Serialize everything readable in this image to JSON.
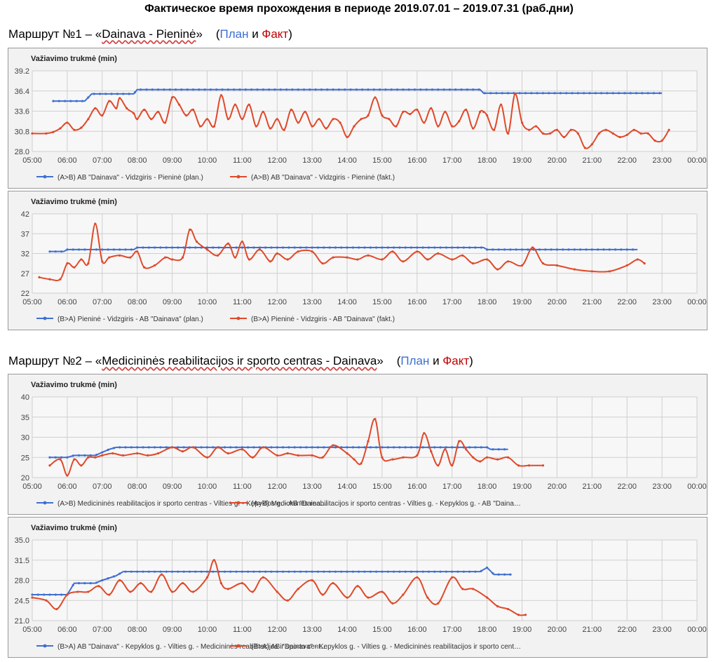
{
  "page_title": "Фактическое время прохождения в периоде 2019.07.01 – 2019.07.31 (раб.дни)",
  "headings": [
    {
      "prefix": "Маршрут №1 – «",
      "route": "Dainava - Pieninė",
      "suffix": "»",
      "open": "(",
      "plan": "План",
      "and": " и ",
      "fakt": "Факт",
      "close": ")"
    },
    {
      "prefix": "Маршрут №2 – «",
      "route": "Medicininės reabilitacijos ir sporto centras - Dainava",
      "suffix": "»",
      "open": "(",
      "plan": "План",
      "and": " и ",
      "fakt": "Факт",
      "close": ")"
    }
  ],
  "colors": {
    "plan": "#3f6fd1",
    "fact": "#e0492a",
    "grid": "#cfcfcf",
    "panel": "#f2f2f2"
  },
  "chart_data": [
    {
      "type": "line",
      "ylabel": "Važiavimo trukmė (min)",
      "ylim": [
        28.0,
        39.2
      ],
      "yticks": [
        "28.0",
        "30.8",
        "33.6",
        "36.4",
        "39.2"
      ],
      "xlim": [
        5,
        24
      ],
      "xticks": [
        "05:00",
        "06:00",
        "07:00",
        "08:00",
        "09:00",
        "10:00",
        "11:00",
        "12:00",
        "13:00",
        "14:00",
        "15:00",
        "16:00",
        "17:00",
        "18:00",
        "19:00",
        "20:00",
        "21:00",
        "22:00",
        "23:00",
        "00:00"
      ],
      "grid": true,
      "legend_position": "bottom",
      "series": [
        {
          "name": "(A>B) AB \"Dainava\" - Vidzgiris - Pieninė (plan.)",
          "color": "plan",
          "x": [
            5.6,
            6.5,
            6.7,
            7.9,
            8.0,
            17.8,
            17.9,
            23.0
          ],
          "y": [
            35.0,
            35.0,
            36.0,
            36.0,
            36.6,
            36.6,
            36.1,
            36.1
          ]
        },
        {
          "name": "(A>B) AB \"Dainava\" - Vidzgiris - Pieninė (fakt.)",
          "color": "fact",
          "x": [
            5.0,
            5.4,
            5.6,
            5.8,
            6.0,
            6.2,
            6.4,
            6.6,
            6.8,
            7.0,
            7.2,
            7.4,
            7.5,
            7.7,
            7.9,
            8.0,
            8.2,
            8.4,
            8.6,
            8.8,
            9.0,
            9.2,
            9.4,
            9.6,
            9.8,
            10.0,
            10.2,
            10.4,
            10.6,
            10.8,
            11.0,
            11.2,
            11.4,
            11.6,
            11.8,
            12.0,
            12.2,
            12.4,
            12.6,
            12.8,
            13.0,
            13.2,
            13.4,
            13.6,
            13.8,
            14.0,
            14.2,
            14.4,
            14.6,
            14.8,
            15.0,
            15.2,
            15.4,
            15.6,
            15.8,
            16.0,
            16.2,
            16.4,
            16.6,
            16.8,
            17.0,
            17.2,
            17.4,
            17.6,
            17.8,
            17.9,
            18.0,
            18.2,
            18.4,
            18.6,
            18.8,
            19.0,
            19.2,
            19.4,
            19.6,
            19.8,
            20.0,
            20.2,
            20.4,
            20.6,
            20.8,
            21.0,
            21.2,
            21.4,
            21.6,
            21.8,
            22.0,
            22.2,
            22.4,
            22.6,
            22.8,
            23.0,
            23.2
          ],
          "y": [
            30.5,
            30.5,
            30.7,
            31.2,
            32.0,
            31.0,
            31.3,
            32.5,
            34.0,
            33.0,
            35.0,
            34.0,
            35.4,
            34.0,
            33.3,
            32.5,
            33.8,
            32.5,
            33.5,
            32.0,
            35.5,
            34.5,
            33.0,
            33.8,
            31.5,
            32.5,
            31.5,
            35.8,
            32.5,
            34.5,
            32.5,
            34.5,
            31.5,
            33.5,
            31.2,
            32.5,
            31.0,
            33.8,
            32.0,
            33.5,
            31.5,
            32.5,
            31.2,
            32.5,
            32.0,
            30.0,
            31.5,
            32.5,
            33.0,
            35.5,
            33.0,
            32.5,
            31.5,
            33.5,
            33.2,
            33.8,
            32.0,
            34.0,
            31.5,
            33.5,
            31.5,
            32.2,
            33.8,
            31.2,
            33.5,
            33.5,
            33.0,
            31.0,
            34.5,
            30.5,
            36.0,
            32.0,
            31.0,
            31.5,
            30.5,
            30.5,
            31.0,
            30.0,
            31.0,
            30.5,
            28.5,
            29.0,
            30.5,
            31.0,
            30.5,
            30.0,
            30.3,
            31.0,
            30.5,
            30.5,
            29.5,
            29.5,
            31.0
          ]
        }
      ]
    },
    {
      "type": "line",
      "ylabel": "Važiavimo trukmė (min)",
      "ylim": [
        22,
        42
      ],
      "yticks": [
        "22",
        "27",
        "32",
        "37",
        "42"
      ],
      "xlim": [
        5,
        24
      ],
      "xticks": [
        "05:00",
        "06:00",
        "07:00",
        "08:00",
        "09:00",
        "10:00",
        "11:00",
        "12:00",
        "13:00",
        "14:00",
        "15:00",
        "16:00",
        "17:00",
        "18:00",
        "19:00",
        "20:00",
        "21:00",
        "22:00",
        "23:00",
        "00:00"
      ],
      "grid": true,
      "legend_position": "bottom",
      "series": [
        {
          "name": "(B>A) Pieninė - Vidzgiris - AB \"Dainava\" (plan.)",
          "color": "plan",
          "x": [
            5.5,
            5.9,
            6.0,
            7.9,
            8.0,
            17.9,
            18.0,
            22.3
          ],
          "y": [
            32.5,
            32.5,
            33.0,
            33.0,
            33.5,
            33.5,
            33.0,
            33.0
          ]
        },
        {
          "name": "(B>A) Pieninė - Vidzgiris - AB \"Dainava\" (fakt.)",
          "color": "fact",
          "x": [
            5.2,
            5.5,
            5.8,
            6.0,
            6.2,
            6.4,
            6.6,
            6.8,
            7.0,
            7.2,
            7.5,
            7.8,
            8.0,
            8.2,
            8.5,
            8.8,
            9.0,
            9.3,
            9.5,
            9.7,
            10.0,
            10.3,
            10.6,
            10.8,
            11.0,
            11.2,
            11.5,
            11.8,
            12.0,
            12.3,
            12.6,
            13.0,
            13.3,
            13.6,
            14.0,
            14.3,
            14.6,
            15.0,
            15.3,
            15.6,
            16.0,
            16.3,
            16.6,
            17.0,
            17.3,
            17.6,
            18.0,
            18.3,
            18.6,
            19.0,
            19.3,
            19.6,
            20.0,
            20.5,
            21.0,
            21.5,
            22.0,
            22.3,
            22.5
          ],
          "y": [
            26,
            25.5,
            25.5,
            29.5,
            28.5,
            30.5,
            29.5,
            39.5,
            30.0,
            31.0,
            31.5,
            31.0,
            32.5,
            28.5,
            29.0,
            31.0,
            30.5,
            31.0,
            38.0,
            35.0,
            33.0,
            31.5,
            34.5,
            31.0,
            35.0,
            30.5,
            33.0,
            30.0,
            32.0,
            30.5,
            32.5,
            32.5,
            29.5,
            31.0,
            31.0,
            30.5,
            31.5,
            30.5,
            32.5,
            30.0,
            32.5,
            30.5,
            32.0,
            30.5,
            31.5,
            29.5,
            30.5,
            28.0,
            30.0,
            29.0,
            33.5,
            29.5,
            29.0,
            28.0,
            27.5,
            27.5,
            29.0,
            30.5,
            29.5
          ]
        }
      ]
    },
    {
      "type": "line",
      "ylabel": "Važiavimo trukmė (min)",
      "ylim": [
        20,
        40
      ],
      "yticks": [
        "20",
        "25",
        "30",
        "35",
        "40"
      ],
      "xlim": [
        5,
        24
      ],
      "xticks": [
        "05:00",
        "06:00",
        "07:00",
        "08:00",
        "09:00",
        "10:00",
        "11:00",
        "12:00",
        "13:00",
        "14:00",
        "15:00",
        "16:00",
        "17:00",
        "18:00",
        "19:00",
        "20:00",
        "21:00",
        "22:00",
        "23:00",
        "00:00"
      ],
      "grid": true,
      "legend_position": "bottom",
      "series": [
        {
          "name": "(A>B) Medicininės reabilitacijos ir sporto centras - Vilties g. - Kepyklos g. - AB \"Daina…",
          "color": "plan",
          "x": [
            5.5,
            6.0,
            6.2,
            6.8,
            7.2,
            7.4,
            18.0,
            18.1,
            18.6
          ],
          "y": [
            25.0,
            25.0,
            25.5,
            25.5,
            27.0,
            27.5,
            27.5,
            27.0,
            27.0
          ]
        },
        {
          "name": "(A>B) Medicininės reabilitacijos ir sporto centras - Vilties g. - Kepyklos g. - AB \"Daina…",
          "color": "fact",
          "x": [
            5.5,
            5.8,
            6.0,
            6.2,
            6.4,
            6.6,
            6.8,
            7.0,
            7.3,
            7.6,
            8.0,
            8.3,
            8.6,
            9.0,
            9.3,
            9.6,
            10.0,
            10.3,
            10.6,
            11.0,
            11.3,
            11.6,
            12.0,
            12.3,
            12.6,
            13.0,
            13.3,
            13.6,
            14.0,
            14.2,
            14.4,
            14.6,
            14.8,
            15.0,
            15.3,
            15.6,
            16.0,
            16.2,
            16.4,
            16.6,
            16.8,
            17.0,
            17.2,
            17.4,
            17.6,
            17.8,
            18.0,
            18.3,
            18.6,
            18.9,
            19.2,
            19.6
          ],
          "y": [
            23.0,
            24.5,
            20.5,
            24.5,
            23.0,
            25.0,
            25.0,
            25.5,
            26.0,
            25.5,
            26.0,
            25.5,
            26.0,
            27.5,
            26.5,
            27.5,
            25.0,
            27.5,
            26.0,
            27.0,
            25.0,
            27.5,
            25.5,
            26.0,
            25.5,
            25.5,
            25.0,
            28.0,
            26.0,
            24.5,
            23.5,
            29.0,
            34.5,
            25.0,
            24.5,
            25.0,
            25.5,
            31.0,
            26.5,
            23.0,
            27.0,
            23.0,
            29.0,
            27.0,
            25.0,
            24.0,
            25.0,
            24.5,
            25.0,
            23.0,
            23.0,
            23.0
          ]
        }
      ]
    },
    {
      "type": "line",
      "ylabel": "Važiavimo trukmė (min)",
      "ylim": [
        21.0,
        35.0
      ],
      "yticks": [
        "21.0",
        "24.5",
        "28.0",
        "31.5",
        "35.0"
      ],
      "xlim": [
        5,
        24
      ],
      "xticks": [
        "05:00",
        "06:00",
        "07:00",
        "08:00",
        "09:00",
        "10:00",
        "11:00",
        "12:00",
        "13:00",
        "14:00",
        "15:00",
        "16:00",
        "17:00",
        "18:00",
        "19:00",
        "20:00",
        "21:00",
        "22:00",
        "23:00",
        "00:00"
      ],
      "grid": true,
      "legend_position": "bottom",
      "series": [
        {
          "name": "(B>A) AB \"Dainava\" - Kepyklos g. - Vilties g. - Medicininės reabilitacijos ir sporto cent…",
          "color": "plan",
          "x": [
            5.0,
            6.0,
            6.2,
            6.8,
            7.0,
            7.4,
            7.6,
            17.8,
            18.0,
            18.2,
            18.7
          ],
          "y": [
            25.5,
            25.5,
            27.5,
            27.5,
            28.0,
            28.8,
            29.5,
            29.5,
            30.2,
            29.0,
            29.0
          ]
        },
        {
          "name": "(B>A) AB \"Dainava\" - Kepyklos g. - Vilties g. - Medicininės reabilitacijos ir sporto cent…",
          "color": "fact",
          "x": [
            5.0,
            5.4,
            5.7,
            6.0,
            6.3,
            6.6,
            6.9,
            7.2,
            7.5,
            7.8,
            8.1,
            8.4,
            8.7,
            9.0,
            9.3,
            9.6,
            10.0,
            10.2,
            10.4,
            10.6,
            11.0,
            11.3,
            11.6,
            12.0,
            12.3,
            12.6,
            13.0,
            13.3,
            13.6,
            14.0,
            14.3,
            14.6,
            15.0,
            15.3,
            15.6,
            16.0,
            16.3,
            16.6,
            17.0,
            17.3,
            17.6,
            18.0,
            18.3,
            18.6,
            18.9,
            19.1
          ],
          "y": [
            25.0,
            24.5,
            23.0,
            25.5,
            26.0,
            26.0,
            27.0,
            25.5,
            28.0,
            26.0,
            27.5,
            26.0,
            29.0,
            26.0,
            27.5,
            26.0,
            28.5,
            31.5,
            27.5,
            26.5,
            27.5,
            26.0,
            28.5,
            26.0,
            24.5,
            26.5,
            28.0,
            25.5,
            27.5,
            25.0,
            27.0,
            25.0,
            26.0,
            24.0,
            25.5,
            28.5,
            25.0,
            24.0,
            28.5,
            26.5,
            26.5,
            25.0,
            23.5,
            23.0,
            22.0,
            22.0
          ]
        }
      ]
    }
  ]
}
